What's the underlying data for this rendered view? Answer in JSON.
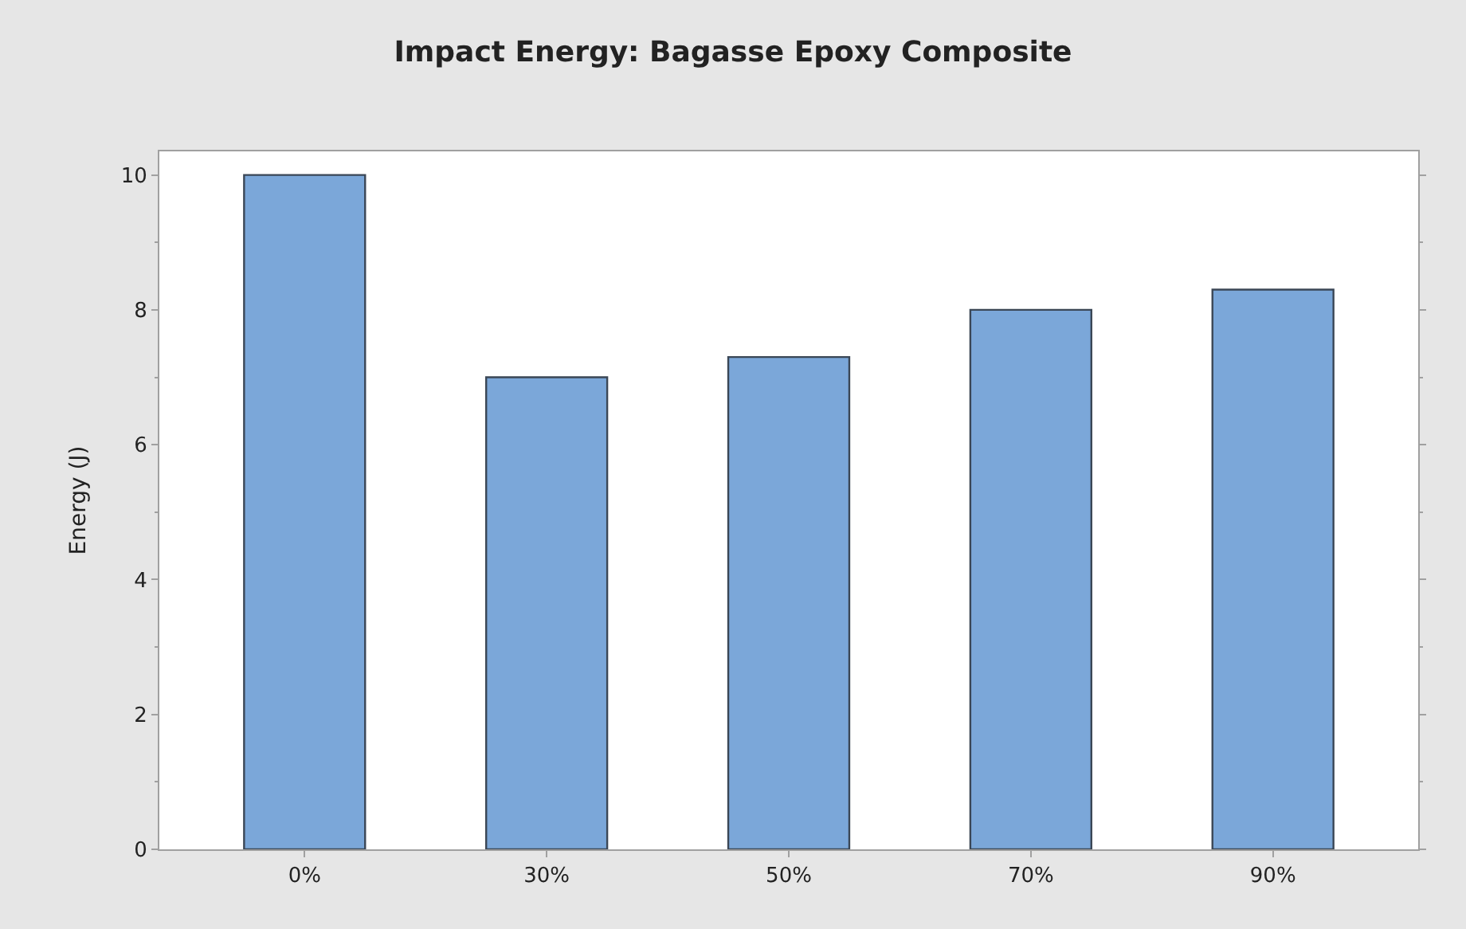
{
  "chart_data": {
    "type": "bar",
    "title": "Impact Energy: Bagasse Epoxy Composite",
    "ylabel": "Energy (J)",
    "categories": [
      "0%",
      "30%",
      "50%",
      "70%",
      "90%"
    ],
    "values": [
      10,
      7,
      7.3,
      8,
      8.3
    ],
    "color": "#7ba7d9",
    "ylim": [
      0,
      10.35
    ],
    "yticks": [
      0,
      2,
      4,
      6,
      8,
      10
    ]
  }
}
